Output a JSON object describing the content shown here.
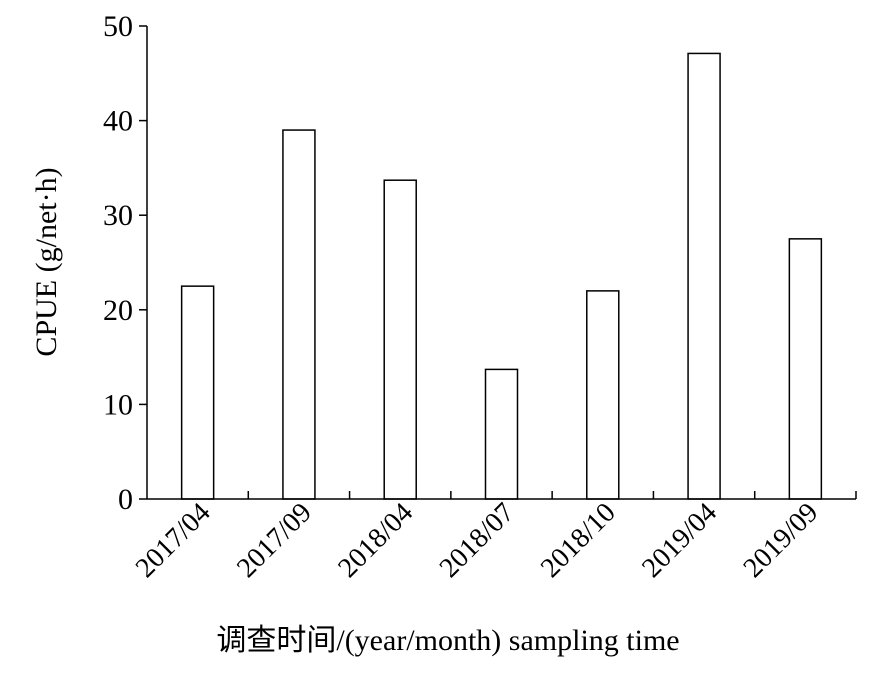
{
  "chart_data": {
    "type": "bar",
    "title": "",
    "categories": [
      "2017/04",
      "2017/09",
      "2018/04",
      "2018/07",
      "2018/10",
      "2019/04",
      "2019/09"
    ],
    "values": [
      22.5,
      39.0,
      33.7,
      13.7,
      22.0,
      47.1,
      27.5
    ],
    "xlabel": "调查时间/(year/month) sampling time",
    "ylabel": "CPUE (g/net·h)",
    "ylim": [
      0,
      50
    ],
    "yticks": [
      0,
      10,
      20,
      30,
      40,
      50
    ],
    "grid": false,
    "legend": "none",
    "bar_fill": "#ffffff",
    "bar_stroke": "#000000"
  }
}
